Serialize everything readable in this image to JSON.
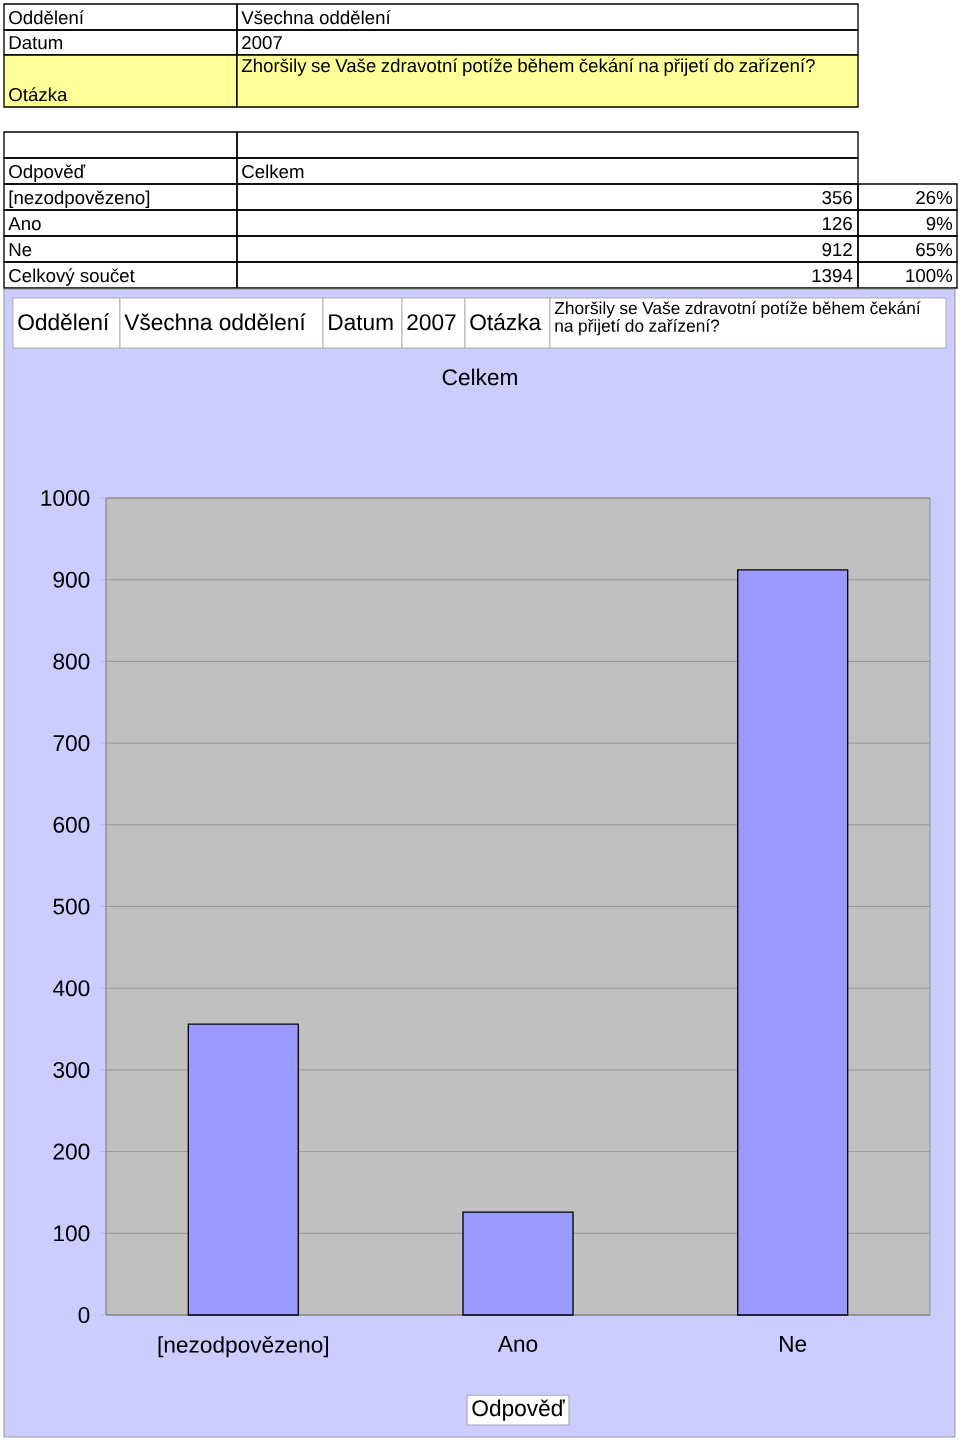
{
  "chart_data": {
    "type": "bar",
    "title": "Celkem",
    "xlabel": "Odpověď",
    "categories": [
      "[nezodpovězeno]",
      "Ano",
      "Ne"
    ],
    "values": [
      356,
      126,
      912
    ],
    "color": "#9999ff",
    "ylim": [
      0,
      1000
    ],
    "yticks": [
      0,
      100,
      200,
      300,
      400,
      500,
      600,
      700,
      800,
      900,
      1000
    ],
    "grid": "y",
    "annotations": [
      "Oddělení",
      "Všechna oddělení",
      "Datum",
      "2007",
      "Otázka",
      "Zhoršily se Vaše zdravotní potíže během čekání na přijetí do zařízení?",
      "Odpověď",
      "Celkem",
      "26%",
      "9%",
      "65%",
      "Celkový součet",
      "1394",
      "100%",
      "Oddělení",
      "Všechna oddělení",
      "Datum",
      "2007",
      "Otázka",
      "Zhoršily se Vaše zdravotní potíže během čekání na přijetí do zařízení?",
      "356",
      "126",
      "912"
    ]
  }
}
